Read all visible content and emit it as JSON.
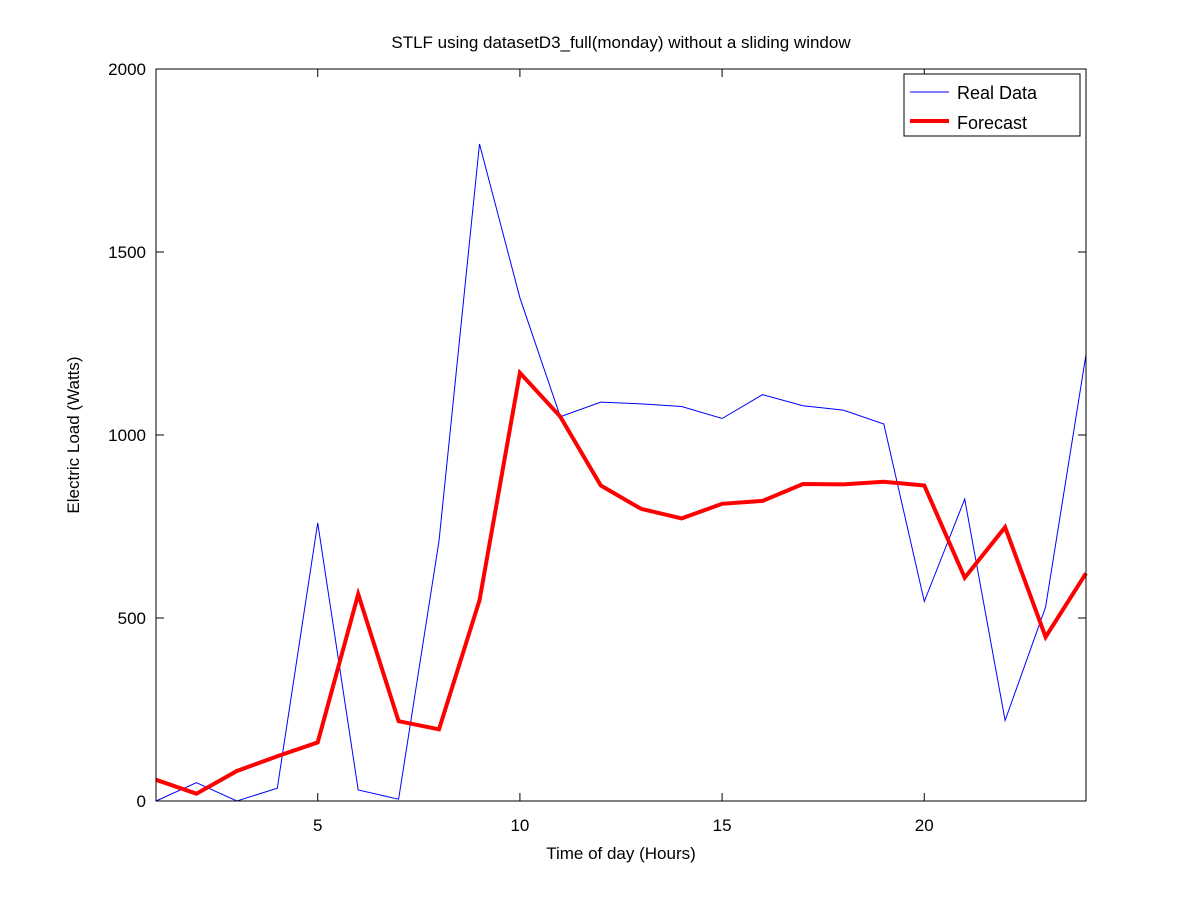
{
  "chart_data": {
    "type": "line",
    "title": "STLF using datasetD3_full(monday) without a sliding window",
    "xlabel": "Time of day (Hours)",
    "ylabel": "Electric Load (Watts)",
    "xlim": [
      1,
      24
    ],
    "ylim": [
      0,
      2000
    ],
    "xticks": [
      5,
      10,
      15,
      20
    ],
    "yticks": [
      0,
      500,
      1000,
      1500,
      2000
    ],
    "grid": false,
    "legend_position": "top-right",
    "x": [
      1,
      2,
      3,
      4,
      5,
      6,
      7,
      8,
      9,
      10,
      11,
      12,
      13,
      14,
      15,
      16,
      17,
      18,
      19,
      20,
      21,
      22,
      23,
      24
    ],
    "series": [
      {
        "name": "Real Data",
        "color": "#0000ff",
        "values": [
          0,
          50,
          0,
          35,
          760,
          30,
          5,
          710,
          1795,
          1375,
          1050,
          1090,
          1085,
          1078,
          1045,
          1110,
          1080,
          1068,
          1030,
          545,
          825,
          220,
          530,
          1220
        ]
      },
      {
        "name": "Forecast",
        "color": "#ff0000",
        "values": [
          58,
          20,
          82,
          122,
          160,
          565,
          218,
          196,
          548,
          1170,
          1050,
          862,
          798,
          772,
          812,
          820,
          866,
          865,
          872,
          862,
          610,
          748,
          448,
          622
        ]
      }
    ]
  }
}
